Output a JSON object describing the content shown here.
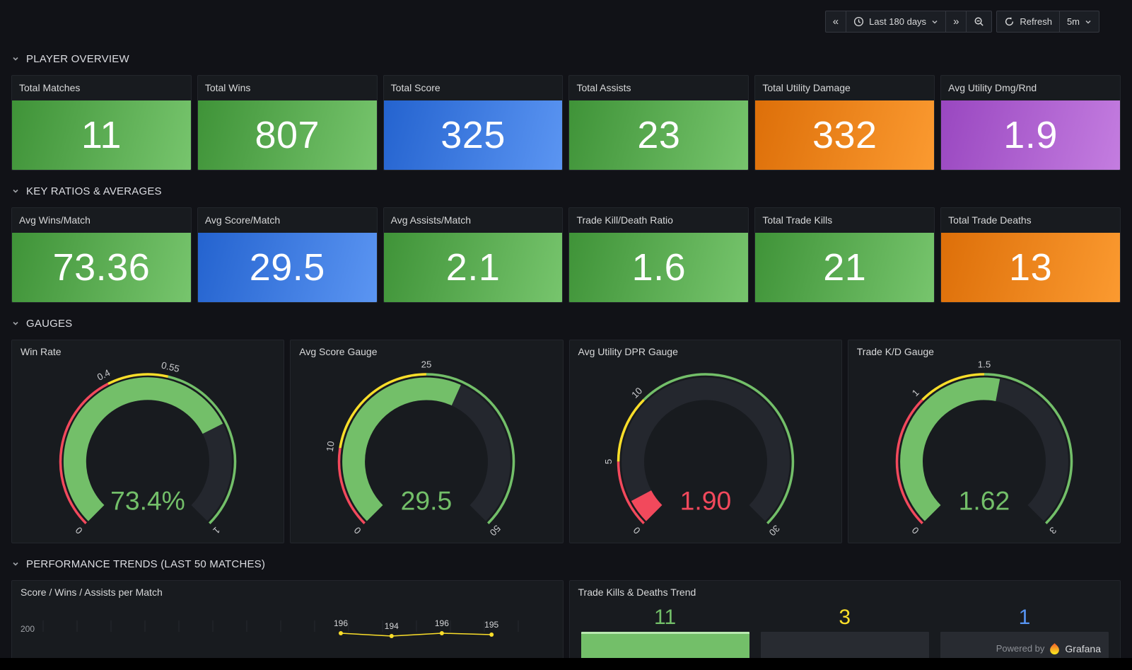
{
  "palette": {
    "green": "#73BF69",
    "yellow": "#FADE2A",
    "red": "#F2495C",
    "blue": "#5794F2",
    "orange": "#FF9830",
    "purple": "#B877D9"
  },
  "toolbar": {
    "shift_back": "«",
    "shift_forward": "»",
    "time_range": "Last 180 days",
    "refresh_label": "Refresh",
    "refresh_interval": "5m"
  },
  "sections": {
    "overview": "PLAYER OVERVIEW",
    "ratios": "KEY RATIOS & AVERAGES",
    "gauges": "GAUGES",
    "trends": "PERFORMANCE TRENDS (LAST 50 MATCHES)"
  },
  "stats": {
    "row1": [
      {
        "title": "Total Matches",
        "value": "11",
        "color": "green"
      },
      {
        "title": "Total Wins",
        "value": "807",
        "color": "green"
      },
      {
        "title": "Total Score",
        "value": "325",
        "color": "blue"
      },
      {
        "title": "Total Assists",
        "value": "23",
        "color": "green"
      },
      {
        "title": "Total Utility Damage",
        "value": "332",
        "color": "orange"
      },
      {
        "title": "Avg Utility Dmg/Rnd",
        "value": "1.9",
        "color": "purple"
      }
    ],
    "row2": [
      {
        "title": "Avg Wins/Match",
        "value": "73.36",
        "color": "green"
      },
      {
        "title": "Avg Score/Match",
        "value": "29.5",
        "color": "blue"
      },
      {
        "title": "Avg Assists/Match",
        "value": "2.1",
        "color": "green"
      },
      {
        "title": "Trade Kill/Death Ratio",
        "value": "1.6",
        "color": "green"
      },
      {
        "title": "Total Trade Kills",
        "value": "21",
        "color": "green"
      },
      {
        "title": "Total Trade Deaths",
        "value": "13",
        "color": "orange"
      }
    ]
  },
  "chart_data": [
    {
      "type": "gauge",
      "title": "Win Rate",
      "value": 0.734,
      "display": "73.4%",
      "min": 0,
      "max": 1,
      "value_color": "#73BF69",
      "ticks": [
        {
          "value": 0,
          "label": "0"
        },
        {
          "value": 0.4,
          "label": "0.4"
        },
        {
          "value": 0.55,
          "label": "0.55"
        },
        {
          "value": 1,
          "label": "1"
        }
      ],
      "thresholds": [
        {
          "from": 0,
          "to": 0.4,
          "color": "#F2495C"
        },
        {
          "from": 0.4,
          "to": 0.55,
          "color": "#FADE2A"
        },
        {
          "from": 0.55,
          "to": 1,
          "color": "#73BF69"
        }
      ]
    },
    {
      "type": "gauge",
      "title": "Avg Score Gauge",
      "value": 29.5,
      "display": "29.5",
      "min": 0,
      "max": 50,
      "value_color": "#73BF69",
      "ticks": [
        {
          "value": 0,
          "label": "0"
        },
        {
          "value": 10,
          "label": "10"
        },
        {
          "value": 25,
          "label": "25"
        },
        {
          "value": 50,
          "label": "50"
        }
      ],
      "thresholds": [
        {
          "from": 0,
          "to": 10,
          "color": "#F2495C"
        },
        {
          "from": 10,
          "to": 25,
          "color": "#FADE2A"
        },
        {
          "from": 25,
          "to": 50,
          "color": "#73BF69"
        }
      ]
    },
    {
      "type": "gauge",
      "title": "Avg Utility DPR Gauge",
      "value": 1.9,
      "display": "1.90",
      "min": 0,
      "max": 30,
      "value_color": "#F2495C",
      "ticks": [
        {
          "value": 0,
          "label": "0"
        },
        {
          "value": 5,
          "label": "5"
        },
        {
          "value": 10,
          "label": "10"
        },
        {
          "value": 30,
          "label": "30"
        }
      ],
      "thresholds": [
        {
          "from": 0,
          "to": 5,
          "color": "#F2495C"
        },
        {
          "from": 5,
          "to": 10,
          "color": "#FADE2A"
        },
        {
          "from": 10,
          "to": 30,
          "color": "#73BF69"
        }
      ]
    },
    {
      "type": "gauge",
      "title": "Trade K/D Gauge",
      "value": 1.62,
      "display": "1.62",
      "min": 0,
      "max": 3,
      "value_color": "#73BF69",
      "ticks": [
        {
          "value": 0,
          "label": "0"
        },
        {
          "value": 1,
          "label": "1"
        },
        {
          "value": 1.5,
          "label": "1.5"
        },
        {
          "value": 3,
          "label": "3"
        }
      ],
      "thresholds": [
        {
          "from": 0,
          "to": 1,
          "color": "#F2495C"
        },
        {
          "from": 1,
          "to": 1.5,
          "color": "#FADE2A"
        },
        {
          "from": 1.5,
          "to": 3,
          "color": "#73BF69"
        }
      ]
    },
    {
      "type": "line",
      "title": "Score / Wins / Assists per Match",
      "y_axis_tick": "200",
      "color": "#FADE2A",
      "points": [
        {
          "x_frac": 0.611,
          "value": 196
        },
        {
          "x_frac": 0.707,
          "value": 194
        },
        {
          "x_frac": 0.802,
          "value": 196
        },
        {
          "x_frac": 0.896,
          "value": 195
        }
      ]
    },
    {
      "type": "bar",
      "title": "Trade Kills & Deaths Trend",
      "bars": [
        {
          "label": "11",
          "color": "#73BF69",
          "filled": true
        },
        {
          "label": "3",
          "color": "#FADE2A",
          "filled": false
        },
        {
          "label": "1",
          "color": "#5794F2",
          "filled": false
        }
      ]
    }
  ],
  "footer": {
    "powered_by": "Powered by",
    "brand": "Grafana"
  }
}
